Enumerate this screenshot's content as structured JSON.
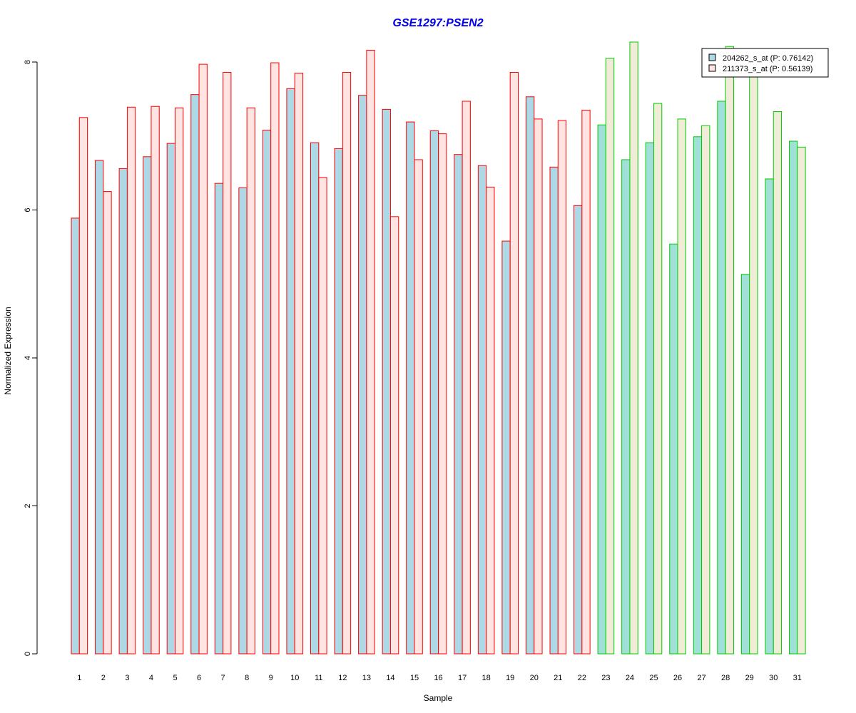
{
  "chart_data": {
    "type": "bar",
    "title": "GSE1297:PSEN2",
    "xlabel": "Sample",
    "ylabel": "Normalized Expression",
    "ylim": [
      0,
      8.3
    ],
    "yticks": [
      "0",
      "2",
      "4",
      "6",
      "8"
    ],
    "categories": [
      "1",
      "2",
      "3",
      "4",
      "5",
      "6",
      "7",
      "8",
      "9",
      "10",
      "11",
      "12",
      "13",
      "14",
      "15",
      "16",
      "17",
      "18",
      "19",
      "20",
      "21",
      "22",
      "23",
      "24",
      "25",
      "26",
      "27",
      "28",
      "29",
      "30",
      "31"
    ],
    "series": [
      {
        "name": "204262_s_at (P: 0.76142)",
        "values": [
          5.89,
          6.67,
          6.56,
          6.72,
          6.9,
          7.56,
          6.36,
          6.3,
          7.08,
          7.64,
          6.91,
          6.83,
          7.55,
          7.36,
          7.19,
          7.07,
          6.75,
          6.6,
          5.58,
          7.53,
          6.58,
          6.06,
          7.15,
          6.68,
          6.91,
          5.54,
          6.99,
          7.47,
          5.13,
          6.42,
          6.93
        ]
      },
      {
        "name": "211373_s_at (P: 0.56139)",
        "values": [
          7.25,
          6.25,
          7.39,
          7.4,
          7.38,
          7.97,
          7.86,
          7.38,
          7.99,
          7.85,
          6.44,
          7.86,
          8.16,
          5.91,
          6.68,
          7.03,
          7.47,
          6.31,
          7.86,
          7.23,
          7.21,
          7.35,
          8.05,
          8.27,
          7.44,
          7.23,
          7.14,
          8.21,
          7.86,
          7.33,
          6.85
        ]
      }
    ],
    "groups": [
      {
        "samples": [
          1,
          22
        ],
        "border_color": "#ff0000"
      },
      {
        "samples": [
          23,
          31
        ],
        "border_color": "#00cc00"
      }
    ],
    "colors": {
      "series1_fill_group1": "#add8e6",
      "series2_fill_group1": "#ffe4e1",
      "series1_fill_group2": "#a0e0d8",
      "series2_fill_group2": "#f0ecd8",
      "title_color": "#0000ee"
    },
    "legend": {
      "position": "top-right"
    },
    "grid": false
  }
}
